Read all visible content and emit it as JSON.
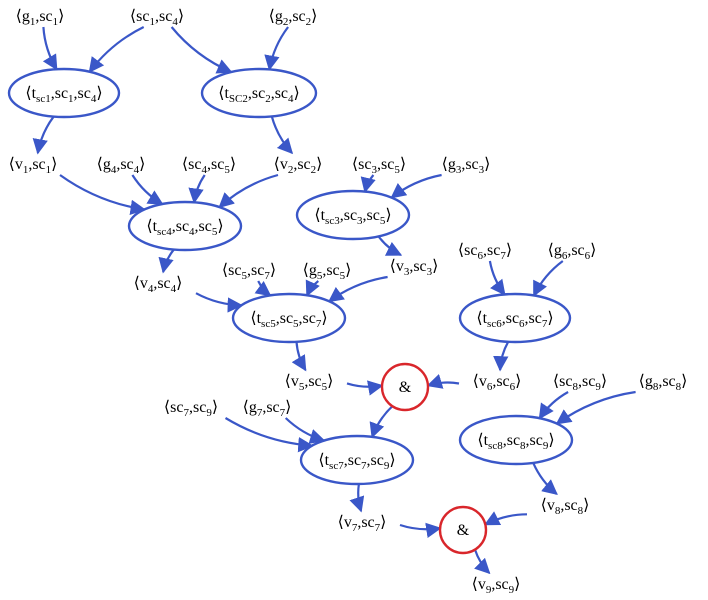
{
  "nodes": [
    {
      "id": "g1_sc1",
      "kind": "label",
      "parts": [
        [
          "⟨g",
          ""
        ],
        [
          "1",
          "s"
        ],
        [
          ",sc",
          ""
        ],
        [
          "1",
          "s"
        ],
        [
          "⟩",
          ""
        ]
      ]
    },
    {
      "id": "sc1_sc4",
      "kind": "label",
      "parts": [
        [
          "⟨sc",
          ""
        ],
        [
          "1",
          "s"
        ],
        [
          ",sc",
          ""
        ],
        [
          "4",
          "s"
        ],
        [
          "⟩",
          ""
        ]
      ]
    },
    {
      "id": "g2_sc2",
      "kind": "label",
      "parts": [
        [
          "⟨g",
          ""
        ],
        [
          "2",
          "s"
        ],
        [
          ",sc",
          ""
        ],
        [
          "2",
          "s"
        ],
        [
          "⟩",
          ""
        ]
      ]
    },
    {
      "id": "t_sc1",
      "kind": "ellipse",
      "parts": [
        [
          "⟨t",
          ""
        ],
        [
          "sc1",
          "s"
        ],
        [
          ",sc",
          ""
        ],
        [
          "1",
          "s"
        ],
        [
          ",sc",
          ""
        ],
        [
          "4",
          "s"
        ],
        [
          "⟩",
          ""
        ]
      ]
    },
    {
      "id": "t_sc2",
      "kind": "ellipse",
      "parts": [
        [
          "⟨t",
          ""
        ],
        [
          "SC2",
          "s"
        ],
        [
          ",sc",
          ""
        ],
        [
          "2",
          "s"
        ],
        [
          ",sc",
          ""
        ],
        [
          "4",
          "s"
        ],
        [
          "⟩",
          ""
        ]
      ]
    },
    {
      "id": "v1_sc1",
      "kind": "label",
      "parts": [
        [
          "⟨v",
          ""
        ],
        [
          "1",
          "s"
        ],
        [
          ",sc",
          ""
        ],
        [
          "1",
          "s"
        ],
        [
          "⟩",
          ""
        ]
      ]
    },
    {
      "id": "g4_sc4",
      "kind": "label",
      "parts": [
        [
          "⟨g",
          ""
        ],
        [
          "4",
          "s"
        ],
        [
          ",sc",
          ""
        ],
        [
          "4",
          "s"
        ],
        [
          "⟩",
          ""
        ]
      ]
    },
    {
      "id": "sc4_sc5",
      "kind": "label",
      "parts": [
        [
          "⟨sc",
          ""
        ],
        [
          "4",
          "s"
        ],
        [
          ",sc",
          ""
        ],
        [
          "5",
          "s"
        ],
        [
          "⟩",
          ""
        ]
      ]
    },
    {
      "id": "v2_sc2",
      "kind": "label",
      "parts": [
        [
          "⟨v",
          ""
        ],
        [
          "2",
          "s"
        ],
        [
          ",sc",
          ""
        ],
        [
          "2",
          "s"
        ],
        [
          "⟩",
          ""
        ]
      ]
    },
    {
      "id": "sc3_sc5",
      "kind": "label",
      "parts": [
        [
          "⟨sc",
          ""
        ],
        [
          "3",
          "s"
        ],
        [
          ",sc",
          ""
        ],
        [
          "5",
          "s"
        ],
        [
          "⟩",
          ""
        ]
      ]
    },
    {
      "id": "g3_sc3",
      "kind": "label",
      "parts": [
        [
          "⟨g",
          ""
        ],
        [
          "3",
          "s"
        ],
        [
          ",sc",
          ""
        ],
        [
          "3",
          "s"
        ],
        [
          "⟩",
          ""
        ]
      ]
    },
    {
      "id": "t_sc4",
      "kind": "ellipse",
      "parts": [
        [
          "⟨t",
          ""
        ],
        [
          "sc4",
          "s"
        ],
        [
          ",sc",
          ""
        ],
        [
          "4",
          "s"
        ],
        [
          ",sc",
          ""
        ],
        [
          "5",
          "s"
        ],
        [
          "⟩",
          ""
        ]
      ]
    },
    {
      "id": "t_sc3",
      "kind": "ellipse",
      "parts": [
        [
          "⟨t",
          ""
        ],
        [
          "sc3",
          "s"
        ],
        [
          ",sc",
          ""
        ],
        [
          "3",
          "s"
        ],
        [
          ",sc",
          ""
        ],
        [
          "5",
          "s"
        ],
        [
          "⟩",
          ""
        ]
      ]
    },
    {
      "id": "v3_sc3",
      "kind": "label",
      "parts": [
        [
          "⟨v",
          ""
        ],
        [
          "3",
          "s"
        ],
        [
          ",sc",
          ""
        ],
        [
          "3",
          "s"
        ],
        [
          "⟩",
          ""
        ]
      ]
    },
    {
      "id": "sc6_sc7",
      "kind": "label",
      "parts": [
        [
          "⟨sc",
          ""
        ],
        [
          "6",
          "s"
        ],
        [
          ",sc",
          ""
        ],
        [
          "7",
          "s"
        ],
        [
          "⟩",
          ""
        ]
      ]
    },
    {
      "id": "g6_sc6",
      "kind": "label",
      "parts": [
        [
          "⟨g",
          ""
        ],
        [
          "6",
          "s"
        ],
        [
          ",sc",
          ""
        ],
        [
          "6",
          "s"
        ],
        [
          "⟩",
          ""
        ]
      ]
    },
    {
      "id": "v4_sc4",
      "kind": "label",
      "parts": [
        [
          "⟨v",
          ""
        ],
        [
          "4",
          "s"
        ],
        [
          ",sc",
          ""
        ],
        [
          "4",
          "s"
        ],
        [
          "⟩",
          ""
        ]
      ]
    },
    {
      "id": "sc5_sc7",
      "kind": "label",
      "parts": [
        [
          "⟨sc",
          ""
        ],
        [
          "5",
          "s"
        ],
        [
          ",sc",
          ""
        ],
        [
          "7",
          "s"
        ],
        [
          "⟩",
          ""
        ]
      ]
    },
    {
      "id": "g5_sc5",
      "kind": "label",
      "parts": [
        [
          "⟨g",
          ""
        ],
        [
          "5",
          "s"
        ],
        [
          ",sc",
          ""
        ],
        [
          "5",
          "s"
        ],
        [
          "⟩",
          ""
        ]
      ]
    },
    {
      "id": "t_sc5",
      "kind": "ellipse",
      "parts": [
        [
          "⟨t",
          ""
        ],
        [
          "sc5",
          "s"
        ],
        [
          ",sc",
          ""
        ],
        [
          "5",
          "s"
        ],
        [
          ",sc",
          ""
        ],
        [
          "7",
          "s"
        ],
        [
          "⟩",
          ""
        ]
      ]
    },
    {
      "id": "t_sc6",
      "kind": "ellipse",
      "parts": [
        [
          "⟨t",
          ""
        ],
        [
          "sc6",
          "s"
        ],
        [
          ",sc",
          ""
        ],
        [
          "6",
          "s"
        ],
        [
          ",sc",
          ""
        ],
        [
          "7",
          "s"
        ],
        [
          "⟩",
          ""
        ]
      ]
    },
    {
      "id": "v5_sc5",
      "kind": "label",
      "parts": [
        [
          "⟨v",
          ""
        ],
        [
          "5",
          "s"
        ],
        [
          ",sc",
          ""
        ],
        [
          "5",
          "s"
        ],
        [
          "⟩",
          ""
        ]
      ]
    },
    {
      "id": "and1",
      "kind": "and",
      "parts": [
        [
          "&",
          ""
        ]
      ]
    },
    {
      "id": "v6_sc6",
      "kind": "label",
      "parts": [
        [
          "⟨v",
          ""
        ],
        [
          "6",
          "s"
        ],
        [
          ",sc",
          ""
        ],
        [
          "6",
          "s"
        ],
        [
          "⟩",
          ""
        ]
      ]
    },
    {
      "id": "sc8_sc9",
      "kind": "label",
      "parts": [
        [
          "⟨sc",
          ""
        ],
        [
          "8",
          "s"
        ],
        [
          ",sc",
          ""
        ],
        [
          "9",
          "s"
        ],
        [
          "⟩",
          ""
        ]
      ]
    },
    {
      "id": "g8_sc8",
      "kind": "label",
      "parts": [
        [
          "⟨g",
          ""
        ],
        [
          "8",
          "s"
        ],
        [
          ",sc",
          ""
        ],
        [
          "8",
          "s"
        ],
        [
          "⟩",
          ""
        ]
      ]
    },
    {
      "id": "sc7_sc9",
      "kind": "label",
      "parts": [
        [
          "⟨sc",
          ""
        ],
        [
          "7",
          "s"
        ],
        [
          ",sc",
          ""
        ],
        [
          "9",
          "s"
        ],
        [
          "⟩",
          ""
        ]
      ]
    },
    {
      "id": "g7_sc7",
      "kind": "label",
      "parts": [
        [
          "⟨g",
          ""
        ],
        [
          "7",
          "s"
        ],
        [
          ",sc",
          ""
        ],
        [
          "7",
          "s"
        ],
        [
          "⟩",
          ""
        ]
      ]
    },
    {
      "id": "t_sc7",
      "kind": "ellipse",
      "parts": [
        [
          "⟨t",
          ""
        ],
        [
          "sc7",
          "s"
        ],
        [
          ",sc",
          ""
        ],
        [
          "7",
          "s"
        ],
        [
          ",sc",
          ""
        ],
        [
          "9",
          "s"
        ],
        [
          "⟩",
          ""
        ]
      ]
    },
    {
      "id": "t_sc8",
      "kind": "ellipse",
      "parts": [
        [
          "⟨t",
          ""
        ],
        [
          "sc8",
          "s"
        ],
        [
          ",sc",
          ""
        ],
        [
          "8",
          "s"
        ],
        [
          ",sc",
          ""
        ],
        [
          "9",
          "s"
        ],
        [
          "⟩",
          ""
        ]
      ]
    },
    {
      "id": "v8_sc8",
      "kind": "label",
      "parts": [
        [
          "⟨v",
          ""
        ],
        [
          "8",
          "s"
        ],
        [
          ",sc",
          ""
        ],
        [
          "8",
          "s"
        ],
        [
          "⟩",
          ""
        ]
      ]
    },
    {
      "id": "v7_sc7",
      "kind": "label",
      "parts": [
        [
          "⟨v",
          ""
        ],
        [
          "7",
          "s"
        ],
        [
          ",sc",
          ""
        ],
        [
          "7",
          "s"
        ],
        [
          "⟩",
          ""
        ]
      ]
    },
    {
      "id": "and2",
      "kind": "and",
      "parts": [
        [
          "&",
          ""
        ]
      ]
    },
    {
      "id": "v9_sc9",
      "kind": "label",
      "parts": [
        [
          "⟨v",
          ""
        ],
        [
          "9",
          "s"
        ],
        [
          ",sc",
          ""
        ],
        [
          "9",
          "s"
        ],
        [
          "⟩",
          ""
        ]
      ]
    }
  ],
  "edges": [
    [
      "g1_sc1",
      "t_sc1"
    ],
    [
      "sc1_sc4",
      "t_sc1"
    ],
    [
      "sc1_sc4",
      "t_sc2"
    ],
    [
      "g2_sc2",
      "t_sc2"
    ],
    [
      "t_sc1",
      "v1_sc1"
    ],
    [
      "t_sc2",
      "v2_sc2"
    ],
    [
      "v1_sc1",
      "t_sc4"
    ],
    [
      "g4_sc4",
      "t_sc4"
    ],
    [
      "sc4_sc5",
      "t_sc4"
    ],
    [
      "v2_sc2",
      "t_sc4"
    ],
    [
      "sc3_sc5",
      "t_sc3"
    ],
    [
      "g3_sc3",
      "t_sc3"
    ],
    [
      "t_sc3",
      "v3_sc3"
    ],
    [
      "t_sc4",
      "v4_sc4"
    ],
    [
      "v4_sc4",
      "t_sc5"
    ],
    [
      "sc5_sc7",
      "t_sc5"
    ],
    [
      "g5_sc5",
      "t_sc5"
    ],
    [
      "v3_sc3",
      "t_sc5"
    ],
    [
      "sc6_sc7",
      "t_sc6"
    ],
    [
      "g6_sc6",
      "t_sc6"
    ],
    [
      "t_sc6",
      "v6_sc6"
    ],
    [
      "t_sc5",
      "v5_sc5"
    ],
    [
      "v5_sc5",
      "and1"
    ],
    [
      "v6_sc6",
      "and1"
    ],
    [
      "and1",
      "t_sc7"
    ],
    [
      "sc7_sc9",
      "t_sc7"
    ],
    [
      "g7_sc7",
      "t_sc7"
    ],
    [
      "sc8_sc9",
      "t_sc8"
    ],
    [
      "g8_sc8",
      "t_sc8"
    ],
    [
      "t_sc8",
      "v8_sc8"
    ],
    [
      "t_sc7",
      "v7_sc7"
    ],
    [
      "v7_sc7",
      "and2"
    ],
    [
      "v8_sc8",
      "and2"
    ],
    [
      "and2",
      "v9_sc9"
    ]
  ],
  "colors": {
    "edge": "#3a57c8",
    "ellipse": "#3a57c8",
    "and_circle": "#d9262b",
    "text": "#000000"
  }
}
